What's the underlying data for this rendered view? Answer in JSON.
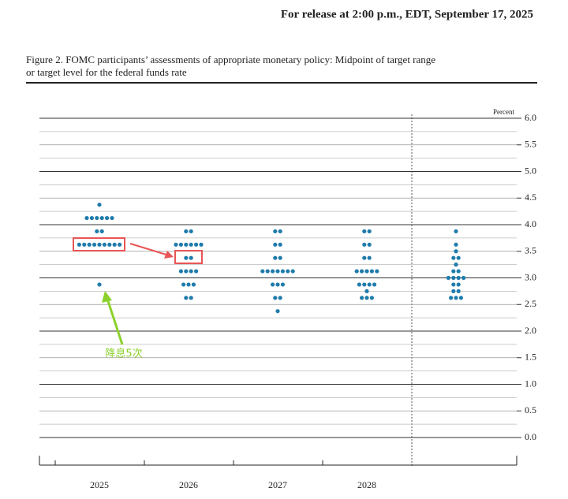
{
  "header": {
    "release": "For release at 2:00 p.m., EDT, September 17, 2025"
  },
  "chart_data": {
    "type": "dot",
    "title": "Figure 2. FOMC participants’ assessments of appropriate monetary policy: Midpoint of target range",
    "title_line2": "or target level for the federal funds rate",
    "y_label": "Percent",
    "color": "#1f7bab",
    "ylim": [
      0,
      6
    ],
    "yticks": [
      {
        "value": 0,
        "label": "0.0"
      },
      {
        "value": 0.5,
        "label": "0.5"
      },
      {
        "value": 1,
        "label": "1.0"
      },
      {
        "value": 1.5,
        "label": "1.5"
      },
      {
        "value": 2,
        "label": "2.0"
      },
      {
        "value": 2.5,
        "label": "2.5"
      },
      {
        "value": 3,
        "label": "3.0"
      },
      {
        "value": 3.5,
        "label": "3.5"
      },
      {
        "value": 4,
        "label": "4.0"
      },
      {
        "value": 4.5,
        "label": "4.5"
      },
      {
        "value": 5,
        "label": "5.0"
      },
      {
        "value": 5.5,
        "label": "5.5"
      },
      {
        "value": 6,
        "label": "6.0"
      }
    ],
    "minor_yticks": [
      0.25,
      0.75,
      1.25,
      1.75,
      2.25,
      2.75,
      3.25,
      3.75,
      4.25,
      4.75,
      5.25,
      5.75
    ],
    "categories": [
      "2025",
      "2026",
      "2027",
      "2028",
      null
    ],
    "groups": [
      [
        {
          "value": 4.375,
          "count": 1
        },
        {
          "value": 4.125,
          "count": 6
        },
        {
          "value": 3.875,
          "count": 2
        },
        {
          "value": 3.625,
          "count": 9
        },
        {
          "value": 2.875,
          "count": 1
        }
      ],
      [
        {
          "value": 3.875,
          "count": 2
        },
        {
          "value": 3.625,
          "count": 6
        },
        {
          "value": 3.375,
          "count": 2
        },
        {
          "value": 3.125,
          "count": 4
        },
        {
          "value": 2.875,
          "count": 3
        },
        {
          "value": 2.625,
          "count": 2
        }
      ],
      [
        {
          "value": 3.875,
          "count": 2
        },
        {
          "value": 3.625,
          "count": 2
        },
        {
          "value": 3.375,
          "count": 2
        },
        {
          "value": 3.125,
          "count": 7
        },
        {
          "value": 2.875,
          "count": 3
        },
        {
          "value": 2.625,
          "count": 2
        },
        {
          "value": 2.375,
          "count": 1
        }
      ],
      [
        {
          "value": 3.875,
          "count": 2
        },
        {
          "value": 3.625,
          "count": 2
        },
        {
          "value": 3.375,
          "count": 2
        },
        {
          "value": 3.125,
          "count": 5
        },
        {
          "value": 2.875,
          "count": 4
        },
        {
          "value": 2.75,
          "count": 1
        },
        {
          "value": 2.625,
          "count": 3
        }
      ],
      [
        {
          "value": 3.875,
          "count": 1
        },
        {
          "value": 3.625,
          "count": 1
        },
        {
          "value": 3.5,
          "count": 1
        },
        {
          "value": 3.375,
          "count": 2
        },
        {
          "value": 3.25,
          "count": 1
        },
        {
          "value": 3.125,
          "count": 2
        },
        {
          "value": 3,
          "count": 4
        },
        {
          "value": 2.875,
          "count": 2
        },
        {
          "value": 2.75,
          "count": 2
        },
        {
          "value": 2.625,
          "count": 3
        }
      ]
    ],
    "annotation": "降息5次"
  }
}
